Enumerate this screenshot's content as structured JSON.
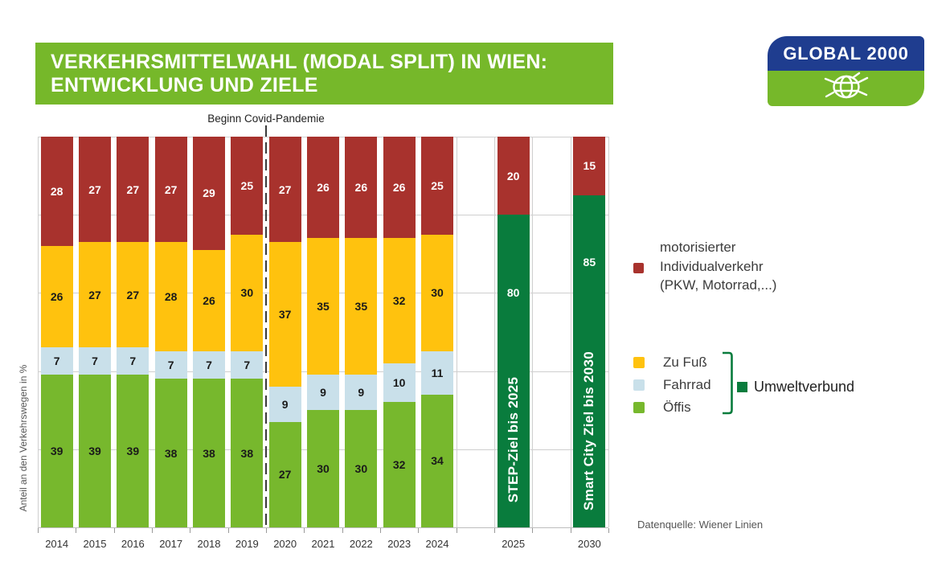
{
  "header": {
    "title_line1": "VERKEHRSMITTELWAHL (MODAL SPLIT) IN WIEN:",
    "title_line2": "ENTWICKLUNG UND ZIELE"
  },
  "logo": {
    "text": "GLOBAL 2000"
  },
  "ylabel": "Anteil an den Verkehrswegen in %",
  "source": "Datenquelle: Wiener Linien",
  "chart_data": {
    "type": "bar",
    "stacked": true,
    "title": "VERKEHRSMITTELWAHL (MODAL SPLIT) IN WIEN: ENTWICKLUNG UND ZIELE",
    "ylabel": "Anteil an den Verkehrswegen in %",
    "unit": "%",
    "ylim": [
      0,
      100
    ],
    "grid": {
      "h_pct": [
        0,
        20,
        40,
        60,
        80,
        100
      ],
      "v_slot_boundaries": [
        0,
        11,
        12,
        13,
        14,
        15
      ]
    },
    "annotation": {
      "label": "Beginn Covid-Pandemie",
      "slot_boundary": 6
    },
    "legend_position": "right",
    "series_meta": {
      "miv": {
        "label": "motorisierter Individualverkehr (PKW, Motorrad,...)",
        "color": "#A8322D",
        "value_color": "#FFFFFF"
      },
      "zu_fuss": {
        "label": "Zu Fuß",
        "color": "#FFC20E",
        "value_color": "#1A1A1A"
      },
      "fahrrad": {
        "label": "Fahrrad",
        "color": "#C9E0EA",
        "value_color": "#1A1A1A"
      },
      "oeffis": {
        "label": "Öffis",
        "color": "#77B82D",
        "value_color": "#1A1A1A"
      },
      "umweltverbund": {
        "label": "Umweltverbund",
        "color": "#097C3D",
        "value_color": "#FFFFFF"
      }
    },
    "bars": [
      {
        "category": "2014",
        "slot": 0,
        "segments": [
          {
            "series": "miv",
            "value": 28
          },
          {
            "series": "zu_fuss",
            "value": 26
          },
          {
            "series": "fahrrad",
            "value": 7
          },
          {
            "series": "oeffis",
            "value": 39
          }
        ]
      },
      {
        "category": "2015",
        "slot": 1,
        "segments": [
          {
            "series": "miv",
            "value": 27
          },
          {
            "series": "zu_fuss",
            "value": 27
          },
          {
            "series": "fahrrad",
            "value": 7
          },
          {
            "series": "oeffis",
            "value": 39
          }
        ]
      },
      {
        "category": "2016",
        "slot": 2,
        "segments": [
          {
            "series": "miv",
            "value": 27
          },
          {
            "series": "zu_fuss",
            "value": 27
          },
          {
            "series": "fahrrad",
            "value": 7
          },
          {
            "series": "oeffis",
            "value": 39
          }
        ]
      },
      {
        "category": "2017",
        "slot": 3,
        "segments": [
          {
            "series": "miv",
            "value": 27
          },
          {
            "series": "zu_fuss",
            "value": 28
          },
          {
            "series": "fahrrad",
            "value": 7
          },
          {
            "series": "oeffis",
            "value": 38
          }
        ]
      },
      {
        "category": "2018",
        "slot": 4,
        "segments": [
          {
            "series": "miv",
            "value": 29
          },
          {
            "series": "zu_fuss",
            "value": 26
          },
          {
            "series": "fahrrad",
            "value": 7
          },
          {
            "series": "oeffis",
            "value": 38
          }
        ]
      },
      {
        "category": "2019",
        "slot": 5,
        "segments": [
          {
            "series": "miv",
            "value": 25
          },
          {
            "series": "zu_fuss",
            "value": 30
          },
          {
            "series": "fahrrad",
            "value": 7
          },
          {
            "series": "oeffis",
            "value": 38
          }
        ]
      },
      {
        "category": "2020",
        "slot": 6,
        "segments": [
          {
            "series": "miv",
            "value": 27
          },
          {
            "series": "zu_fuss",
            "value": 37
          },
          {
            "series": "fahrrad",
            "value": 9
          },
          {
            "series": "oeffis",
            "value": 27
          }
        ]
      },
      {
        "category": "2021",
        "slot": 7,
        "segments": [
          {
            "series": "miv",
            "value": 26
          },
          {
            "series": "zu_fuss",
            "value": 35
          },
          {
            "series": "fahrrad",
            "value": 9
          },
          {
            "series": "oeffis",
            "value": 30
          }
        ]
      },
      {
        "category": "2022",
        "slot": 8,
        "segments": [
          {
            "series": "miv",
            "value": 26
          },
          {
            "series": "zu_fuss",
            "value": 35
          },
          {
            "series": "fahrrad",
            "value": 9
          },
          {
            "series": "oeffis",
            "value": 30
          }
        ]
      },
      {
        "category": "2023",
        "slot": 9,
        "segments": [
          {
            "series": "miv",
            "value": 26
          },
          {
            "series": "zu_fuss",
            "value": 32
          },
          {
            "series": "fahrrad",
            "value": 10
          },
          {
            "series": "oeffis",
            "value": 32
          }
        ]
      },
      {
        "category": "2024",
        "slot": 10,
        "segments": [
          {
            "series": "miv",
            "value": 25
          },
          {
            "series": "zu_fuss",
            "value": 30
          },
          {
            "series": "fahrrad",
            "value": 11
          },
          {
            "series": "oeffis",
            "value": 34
          }
        ]
      },
      {
        "category": "2025",
        "slot": 12,
        "name": "STEP-Ziel bis 2025",
        "name_pos": 0.72,
        "segments": [
          {
            "series": "miv",
            "value": 20
          },
          {
            "series": "umweltverbund",
            "value": 80,
            "value_pos": 0.25
          }
        ]
      },
      {
        "category": "2030",
        "slot": 14,
        "name": "Smart City Ziel bis 2030",
        "name_pos": 0.71,
        "segments": [
          {
            "series": "miv",
            "value": 15
          },
          {
            "series": "umweltverbund",
            "value": 85,
            "value_pos": 0.2
          }
        ]
      }
    ]
  }
}
